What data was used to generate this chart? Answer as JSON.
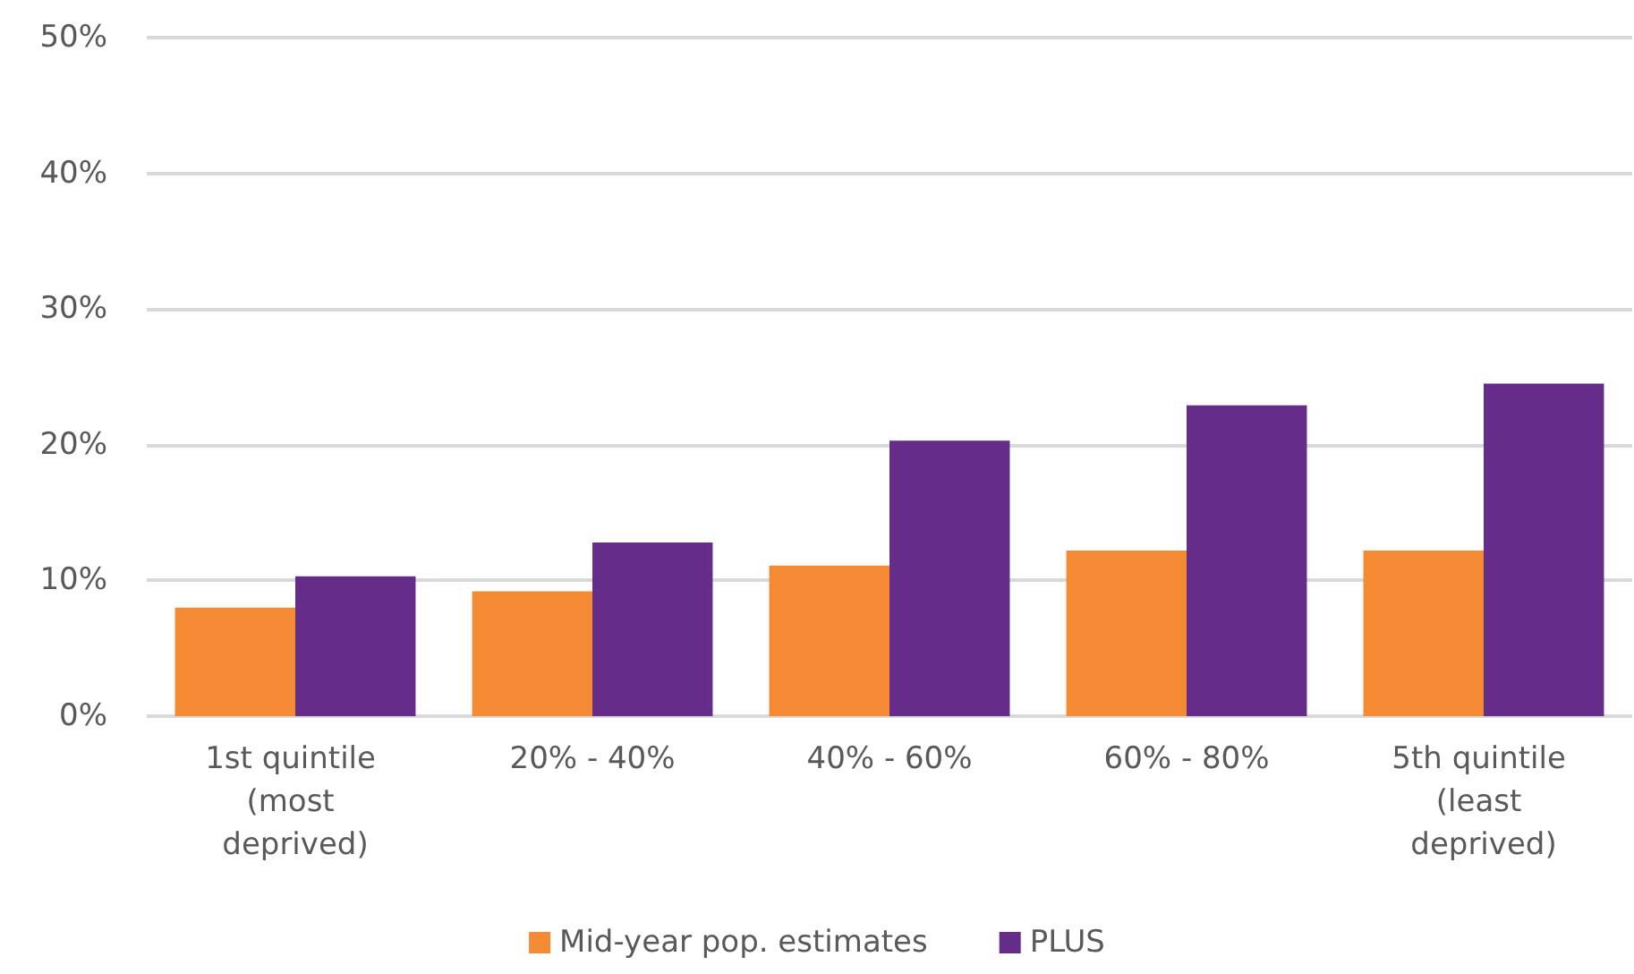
{
  "chart_data": {
    "type": "bar",
    "categories": [
      "1st quintile (most deprived)",
      "20% - 40%",
      "40% - 60%",
      "60% - 80%",
      "5th quintile (least deprived)"
    ],
    "series": [
      {
        "name": "Mid-year pop. estimates",
        "color": "#f58a35",
        "values": [
          8.0,
          9.2,
          11.1,
          12.2,
          12.2
        ]
      },
      {
        "name": "PLUS",
        "color": "#652d89",
        "values": [
          10.3,
          12.8,
          20.3,
          22.9,
          24.5
        ]
      }
    ],
    "ylim": [
      0,
      50
    ],
    "yticks": [
      {
        "value": 0,
        "label": "0%"
      },
      {
        "value": 10,
        "label": "10%"
      },
      {
        "value": 20,
        "label": "20%"
      },
      {
        "value": 30,
        "label": "30%"
      },
      {
        "value": 40,
        "label": "40%"
      },
      {
        "value": 50,
        "label": "50%"
      }
    ],
    "grid": "y",
    "legend": "bottom"
  }
}
